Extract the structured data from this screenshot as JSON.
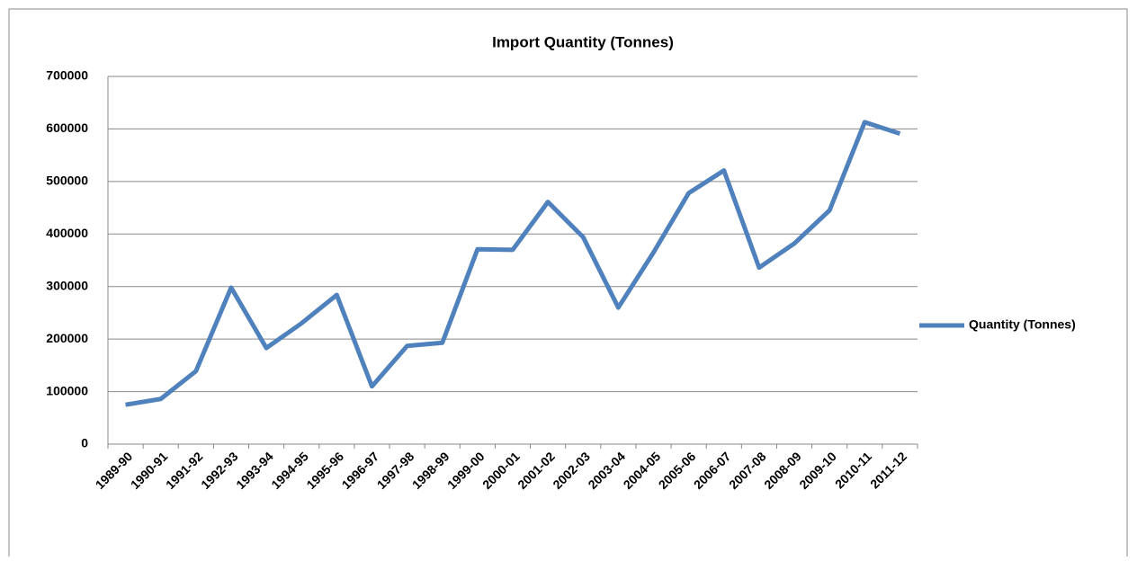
{
  "chart_data": {
    "type": "line",
    "title": "Import Quantity (Tonnes)",
    "categories": [
      "1989-90",
      "1990-91",
      "1991-92",
      "1992-93",
      "1993-94",
      "1994-95",
      "1995-96",
      "1996-97",
      "1997-98",
      "1998-99",
      "1999-00",
      "2000-01",
      "2001-02",
      "2002-03",
      "2003-04",
      "2004-05",
      "2005-06",
      "2006-07",
      "2007-08",
      "2008-09",
      "2009-10",
      "2010-11",
      "2011-12"
    ],
    "series": [
      {
        "name": "Quantity (Tonnes)",
        "color": "#4f81bd",
        "values": [
          75000,
          86000,
          139000,
          298000,
          183000,
          230000,
          284000,
          110000,
          187000,
          193000,
          371000,
          370000,
          461000,
          394000,
          260000,
          365000,
          478000,
          521000,
          336000,
          382000,
          445000,
          613000,
          591000
        ]
      }
    ],
    "ylim": [
      0,
      700000
    ],
    "yticks": [
      0,
      100000,
      200000,
      300000,
      400000,
      500000,
      600000,
      700000
    ],
    "grid": true,
    "legend": "right"
  }
}
